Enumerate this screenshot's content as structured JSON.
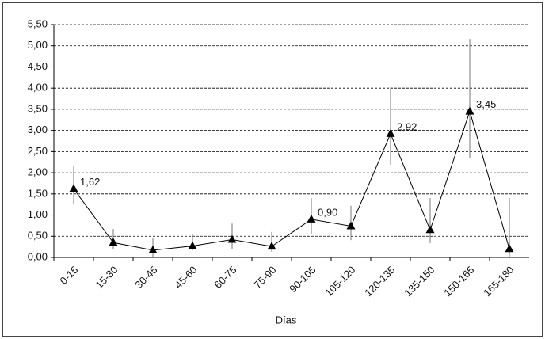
{
  "chart_data": {
    "type": "line",
    "x_label": "Días",
    "categories": [
      "0-15",
      "15-30",
      "30-45",
      "45-60",
      "60-75",
      "75-90",
      "90-105",
      "105-120",
      "120-135",
      "135-150",
      "150-165",
      "165-180"
    ],
    "values": [
      1.62,
      0.35,
      0.17,
      0.27,
      0.42,
      0.26,
      0.9,
      0.74,
      2.92,
      0.65,
      3.45,
      0.2
    ],
    "value_labels": [
      "1,62",
      null,
      null,
      null,
      null,
      null,
      "0,90",
      null,
      "2,92",
      null,
      "3,45",
      null
    ],
    "error_low": [
      0.37,
      0.15,
      0.17,
      0.1,
      0.22,
      0.13,
      0.34,
      0.33,
      0.73,
      0.31,
      1.11,
      0.2
    ],
    "error_high": [
      0.53,
      0.32,
      0.28,
      0.29,
      0.38,
      0.34,
      0.5,
      0.48,
      1.1,
      0.75,
      1.71,
      1.2
    ],
    "color": "#000000",
    "ylim": [
      0,
      5.5
    ],
    "yticks": [
      {
        "value": 0,
        "label": "0,00"
      },
      {
        "value": 0.5,
        "label": "0,50"
      },
      {
        "value": 1,
        "label": "1,00"
      },
      {
        "value": 1.5,
        "label": "1,50"
      },
      {
        "value": 2,
        "label": "2,00"
      },
      {
        "value": 2.5,
        "label": "2,50"
      },
      {
        "value": 3,
        "label": "3,00"
      },
      {
        "value": 3.5,
        "label": "3,50"
      },
      {
        "value": 4,
        "label": "4,00"
      },
      {
        "value": 4.5,
        "label": "4,50"
      },
      {
        "value": 5,
        "label": "5,00"
      },
      {
        "value": 5.5,
        "label": "5,50"
      }
    ],
    "grid": true
  }
}
